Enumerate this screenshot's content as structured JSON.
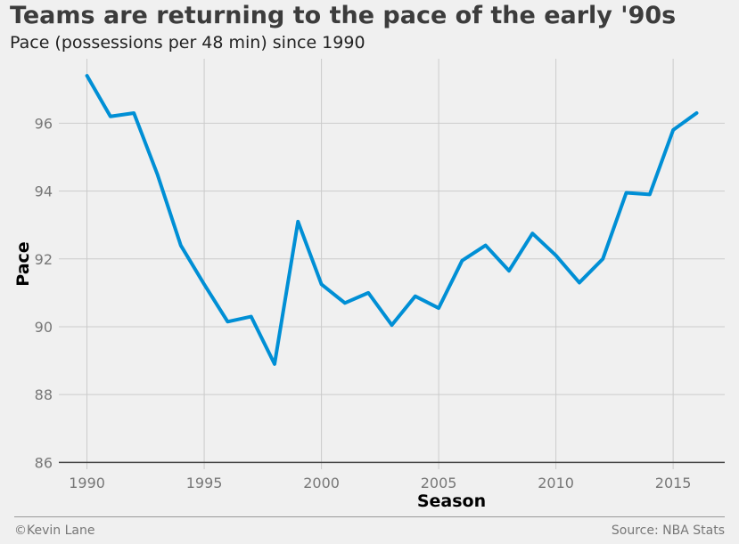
{
  "title": "Teams are returning to the pace of the early '90s",
  "subtitle": "Pace (possessions per 48 min) since 1990",
  "footer": {
    "left": "©Kevin Lane",
    "right": "Source: NBA Stats"
  },
  "chart_data": {
    "type": "line",
    "title": "Teams are returning to the pace of the early '90s",
    "subtitle": "Pace (possessions per 48 min) since 1990",
    "xlabel": "Season",
    "ylabel": "Pace",
    "xlim": [
      1988.8,
      2017.2
    ],
    "ylim": [
      85.8,
      97.9
    ],
    "xticks": [
      1990,
      1995,
      2000,
      2005,
      2010,
      2015
    ],
    "yticks": [
      86,
      88,
      90,
      92,
      94,
      96
    ],
    "grid": true,
    "line_color": "#008fd5",
    "series": [
      {
        "x": [
          1990,
          1991,
          1992,
          1993,
          1994,
          1995,
          1996,
          1997,
          1998,
          1999,
          2000,
          2001,
          2002,
          2003,
          2004,
          2005,
          2006,
          2007,
          2008,
          2009,
          2010,
          2011,
          2012,
          2013,
          2014,
          2015,
          2016
        ],
        "values": [
          97.4,
          96.2,
          96.3,
          94.5,
          92.4,
          91.25,
          90.15,
          90.3,
          88.9,
          93.1,
          91.25,
          90.7,
          91.0,
          90.05,
          90.9,
          90.55,
          91.95,
          92.4,
          91.65,
          92.75,
          92.1,
          91.3,
          92.0,
          93.95,
          93.9,
          95.8,
          96.3
        ]
      }
    ]
  }
}
